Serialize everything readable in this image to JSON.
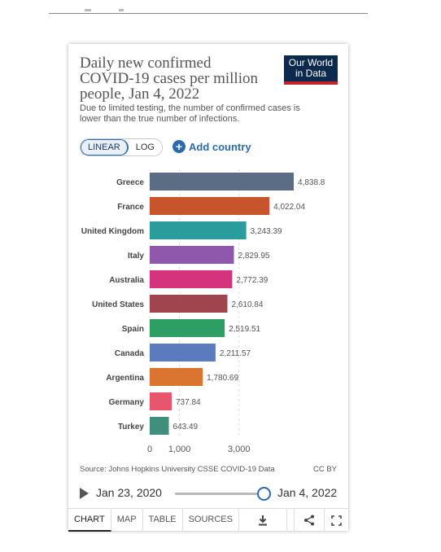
{
  "header": {
    "title": "Daily new confirmed COVID-19 cases per million people, Jan 4, 2022",
    "subtitle": "Due to limited testing, the number of confirmed cases is lower than the true number of infections.",
    "logo": [
      "Our World",
      "in Data"
    ]
  },
  "controls": {
    "linear_label": "LINEAR",
    "log_label": "LOG",
    "active_scale": "linear",
    "add_country_label": "Add country"
  },
  "chart_data": {
    "type": "bar",
    "orientation": "horizontal",
    "categories": [
      "Greece",
      "France",
      "United Kingdom",
      "Italy",
      "Australia",
      "United States",
      "Spain",
      "Canada",
      "Argentina",
      "Germany",
      "Turkey"
    ],
    "values": [
      4838.8,
      4022.04,
      3243.39,
      2829.95,
      2772.39,
      2610.84,
      2519.51,
      2211.57,
      1780.69,
      737.84,
      643.49
    ],
    "value_labels": [
      "4,838.8",
      "4,022.04",
      "3,243.39",
      "2,829.95",
      "2,772.39",
      "2,610.84",
      "2,519.51",
      "2,211.57",
      "1,780.69",
      "737.84",
      "643.49"
    ],
    "colors": [
      "#5b6c85",
      "#c7552c",
      "#2a9c9b",
      "#8f58ad",
      "#d6337e",
      "#a0454e",
      "#2e9e62",
      "#5b7bbd",
      "#d97530",
      "#e8566d",
      "#3f8f7c"
    ],
    "xlim": [
      0,
      4838.8
    ],
    "x_ticks": [
      0,
      1000,
      3000
    ],
    "x_tick_labels": [
      "0",
      "1,000",
      "3,000"
    ],
    "grid": true
  },
  "footer": {
    "source": "Source: Johns Hopkins University CSSE COVID-19 Data",
    "license": "CC BY",
    "timeline_start": "Jan 23, 2020",
    "timeline_end": "Jan 4, 2022",
    "timeline_position": 1.0
  },
  "tabs": [
    "CHART",
    "MAP",
    "TABLE",
    "SOURCES"
  ],
  "active_tab": "CHART",
  "icons": [
    "download-icon",
    "share-icon",
    "fullscreen-icon"
  ]
}
